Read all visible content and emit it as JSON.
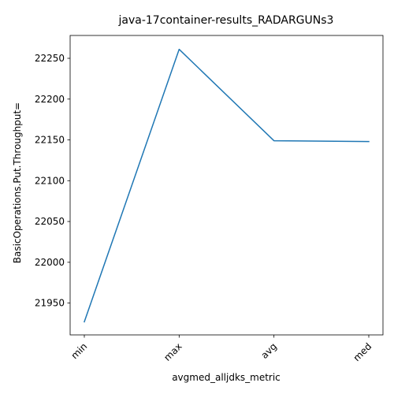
{
  "chart_data": {
    "type": "line",
    "title": "java-17container-results_RADARGUNs3",
    "xlabel": "avgmed_alljdks_metric",
    "ylabel": "BasicOperations.Put.Throughput=",
    "categories": [
      "min",
      "max",
      "avg",
      "med"
    ],
    "series": [
      {
        "values": [
          21927,
          22261,
          22149,
          22148
        ]
      }
    ],
    "ylim": [
      21911,
      22278
    ],
    "yticks": [
      21950,
      22000,
      22050,
      22100,
      22150,
      22200,
      22250
    ],
    "ytick_labels": [
      "21950",
      "22000",
      "22050",
      "22100",
      "22150",
      "22200",
      "22250"
    ],
    "grid": false,
    "legend": "none",
    "line_color": "#1f77b4"
  }
}
